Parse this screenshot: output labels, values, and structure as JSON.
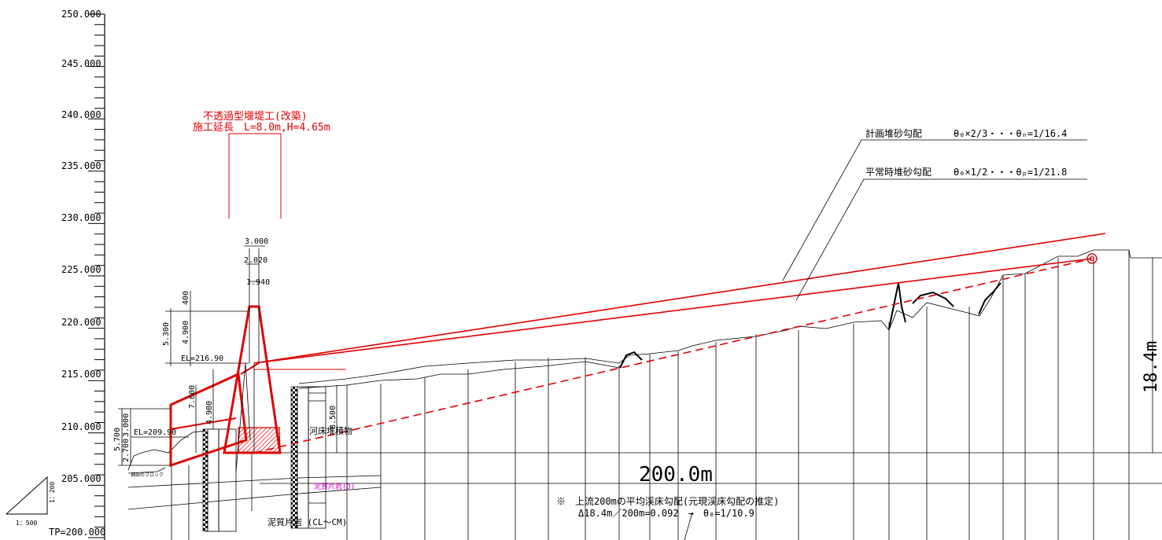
{
  "axis": {
    "labels": [
      "250.000",
      "245.000",
      "240.000",
      "235.000",
      "230.000",
      "225.000",
      "220.000",
      "215.000",
      "210.000",
      "205.000",
      "TP=200.000"
    ]
  },
  "dam": {
    "title_line1": "不透過型堰堤工(改築)",
    "title_line2": "施工延長　L=8.0m,H=4.65m",
    "crest_elevation": "EL=216.90",
    "downstream_elevation": "EL=209.90"
  },
  "dimensions": {
    "top_width_3000": "3.000",
    "top_width_2020": "2.020",
    "top_width_1940": "1.940",
    "h_400": "400",
    "h_4900_upper": "4.900",
    "h_5300": "5.300",
    "h_7600": "7.600",
    "h_4900_lower": "4.900",
    "h_8500": "8.500",
    "left_3000": "3.000",
    "left_5700": "5.700",
    "left_2700": "2.700",
    "span_200": "200.0m",
    "rise_184": "18.4m"
  },
  "gradients": {
    "planned_label": "計画堆砂勾配",
    "planned_formula": "θ₀×2/3・・・θₙ=1/16.4",
    "normal_label": "平常時堆砂勾配",
    "normal_formula": "θ₀×1/2・・・θₚ=1/21.8"
  },
  "note": {
    "line1": "※　上流200mの平均渓床勾配(元現渓床勾配の推定)",
    "line2": "Δ18.4m／200m=0.092　→　θ₀=1/10.9"
  },
  "geology": {
    "riverbed_deposit": "河床堆積物",
    "mudstone": "泥質片岩 (CL～CM)",
    "pink_label": "泥質片岩(D)",
    "block_label": "袖部のブロック"
  },
  "scale": {
    "vertical": "1：200",
    "horizontal": "1：500"
  },
  "colors": {
    "design_red": "#e00000",
    "ink": "#000000",
    "pink": "#d000d0"
  }
}
